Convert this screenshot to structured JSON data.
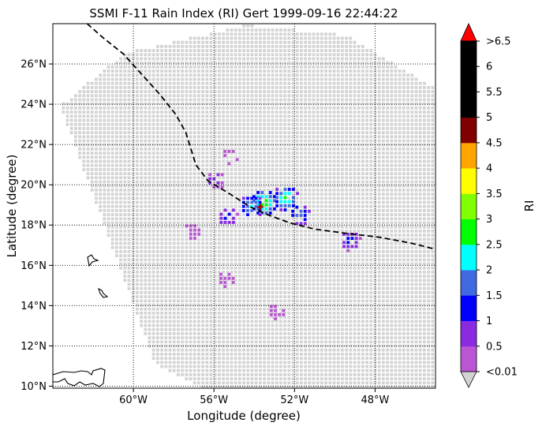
{
  "chart_data": {
    "type": "scatter",
    "title": "SSMI F-11 Rain Index (RI) Gert 1999-09-16 22:44:22",
    "xlabel": "Longitude (degree)",
    "ylabel": "Latitude (degree)",
    "xlim": [
      -64,
      -45
    ],
    "ylim": [
      9.9,
      28.0
    ],
    "xticks": [
      -60,
      -56,
      -52,
      -48
    ],
    "xtick_labels": [
      "60°W",
      "56°W",
      "52°W",
      "48°W"
    ],
    "yticks": [
      10,
      12,
      14,
      16,
      18,
      20,
      22,
      24,
      26
    ],
    "ytick_labels": [
      "10°N",
      "12°N",
      "14°N",
      "16°N",
      "18°N",
      "20°N",
      "22°N",
      "24°N",
      "26°N"
    ],
    "grid": true,
    "swath_color": "#d3d3d3",
    "swath_corners": [
      [
        -63.7,
        24.0
      ],
      [
        -60.5,
        26.6
      ],
      [
        -54.5,
        28.0
      ],
      [
        -49.5,
        27.5
      ],
      [
        -45.0,
        24.8
      ],
      [
        -45.0,
        9.9
      ],
      [
        -56.5,
        9.9
      ],
      [
        -59.0,
        11.2
      ]
    ],
    "rain_cells": [
      {
        "lon": -53.6,
        "lat": 19.2,
        "ri": 3.5
      },
      {
        "lon": -52.5,
        "lat": 19.4,
        "ri": 3.0
      },
      {
        "lon": -54.2,
        "lat": 19.0,
        "ri": 2.5
      },
      {
        "lon": -51.8,
        "lat": 18.6,
        "ri": 2.0
      },
      {
        "lon": -55.4,
        "lat": 18.5,
        "ri": 1.5
      },
      {
        "lon": -56.0,
        "lat": 20.3,
        "ri": 1.0
      },
      {
        "lon": -57.2,
        "lat": 17.8,
        "ri": 0.5
      },
      {
        "lon": -49.3,
        "lat": 17.3,
        "ri": 1.5
      },
      {
        "lon": -55.5,
        "lat": 15.4,
        "ri": 0.5
      },
      {
        "lon": -53.0,
        "lat": 13.8,
        "ri": 0.5
      },
      {
        "lon": -55.3,
        "lat": 21.5,
        "ri": 0.5
      }
    ],
    "track_lon": [
      -62.3,
      -61.5,
      -60.5,
      -59.6,
      -58.7,
      -57.9,
      -57.4,
      -56.9,
      -56.3,
      -55.3,
      -54.2,
      -53.3,
      -52.2,
      -51.0,
      -49.5,
      -47.8,
      -46.2,
      -45.0
    ],
    "track_lat": [
      28.0,
      27.3,
      26.5,
      25.5,
      24.5,
      23.5,
      22.6,
      21.0,
      20.2,
      19.6,
      18.9,
      18.5,
      18.1,
      17.8,
      17.6,
      17.4,
      17.1,
      16.8
    ],
    "storm_center": {
      "lon": -53.7,
      "lat": 18.9
    },
    "colorbar": {
      "label": "RI",
      "tick_labels": [
        "<0.01",
        "0.5",
        "1",
        "1.5",
        "2",
        "2.5",
        "3",
        "3.5",
        "4",
        "4.5",
        "5",
        "5.5",
        "6",
        ">6.5"
      ],
      "colors": [
        "#ba55d3",
        "#8a2be2",
        "#0000ff",
        "#4169e1",
        "#00ffff",
        "#00ff00",
        "#7fff00",
        "#ffff00",
        "#ffa500",
        "#800000",
        "#000000",
        "#000000",
        "#000000"
      ],
      "under_color": "#d3d3d3",
      "over_color": "#ff0000"
    }
  }
}
